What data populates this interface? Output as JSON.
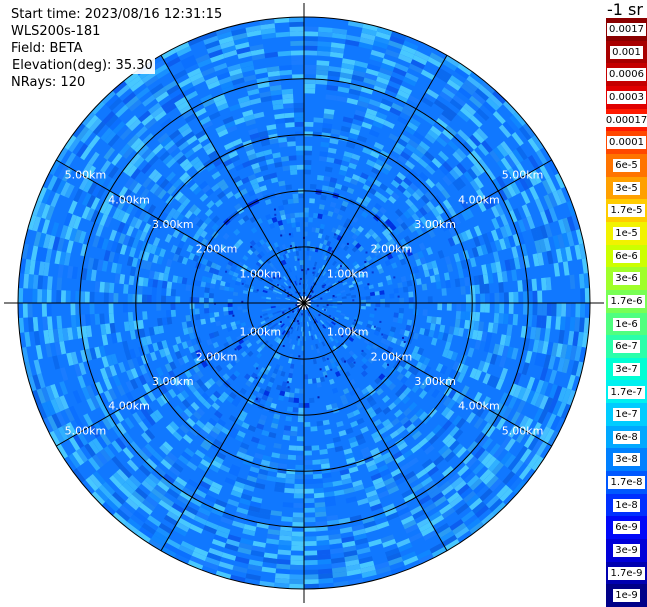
{
  "plot_info": {
    "start_time": "Start time: 2023/08/16 12:31:15",
    "instrument": "WLS200s-181",
    "field": "Field: BETA",
    "elevation": "Elevation(deg): 35.30",
    "nrays": "NRays: 120"
  },
  "rings": [
    {
      "km": 1.0,
      "label": "1.00km"
    },
    {
      "km": 2.0,
      "label": "2.00km"
    },
    {
      "km": 3.0,
      "label": "3.00km"
    },
    {
      "km": 4.0,
      "label": "4.00km"
    },
    {
      "km": 5.0,
      "label": "5.00km"
    }
  ],
  "max_range_km": 5.0,
  "colorbar": {
    "unit_label": "-1 sr",
    "levels": [
      {
        "label": "0.0017",
        "color": "#8b0000"
      },
      {
        "label": "0.001",
        "color": "#a80000"
      },
      {
        "label": "0.0006",
        "color": "#c40000"
      },
      {
        "label": "0.0003",
        "color": "#e00000"
      },
      {
        "label": "0.00017",
        "color": "#ff1a00"
      },
      {
        "label": "0.0001",
        "color": "#ff4800"
      },
      {
        "label": "6e-5",
        "color": "#ff7400"
      },
      {
        "label": "3e-5",
        "color": "#ffa000"
      },
      {
        "label": "1.7e-5",
        "color": "#ffcc00"
      },
      {
        "label": "1e-5",
        "color": "#f2f200"
      },
      {
        "label": "6e-6",
        "color": "#ccff00"
      },
      {
        "label": "3e-6",
        "color": "#a0ff2a"
      },
      {
        "label": "1.7e-6",
        "color": "#78ff55"
      },
      {
        "label": "1e-6",
        "color": "#50ff80"
      },
      {
        "label": "6e-7",
        "color": "#2affaa"
      },
      {
        "label": "3e-7",
        "color": "#00ffd4"
      },
      {
        "label": "1.7e-7",
        "color": "#00f0f0"
      },
      {
        "label": "1e-7",
        "color": "#00ccff"
      },
      {
        "label": "6e-8",
        "color": "#00a8ff"
      },
      {
        "label": "3e-8",
        "color": "#0080ff"
      },
      {
        "label": "1.7e-8",
        "color": "#0058ff"
      },
      {
        "label": "1e-8",
        "color": "#0030ff"
      },
      {
        "label": "6e-9",
        "color": "#0008f8"
      },
      {
        "label": "3e-9",
        "color": "#0000d8"
      },
      {
        "label": "1.7e-9",
        "color": "#0000b0"
      },
      {
        "label": "1e-9",
        "color": "#000088"
      }
    ]
  }
}
